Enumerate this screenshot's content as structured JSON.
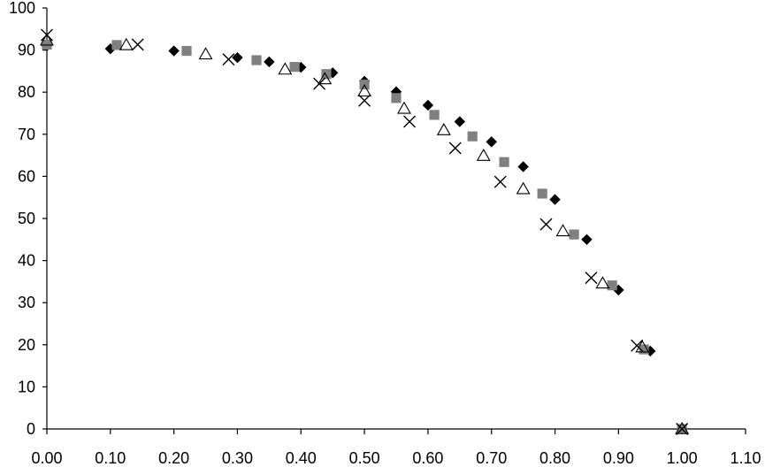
{
  "chart_data": {
    "type": "scatter",
    "title": "",
    "xlabel": "",
    "ylabel": "",
    "xlim": [
      0.0,
      1.1
    ],
    "ylim": [
      0,
      100
    ],
    "grid": false,
    "x_ticks": [
      "0.00",
      "0.10",
      "0.20",
      "0.30",
      "0.40",
      "0.50",
      "0.60",
      "0.70",
      "0.80",
      "0.90",
      "1.00",
      "1.10"
    ],
    "y_ticks": [
      "0",
      "10",
      "20",
      "30",
      "40",
      "50",
      "60",
      "70",
      "80",
      "90",
      "100"
    ],
    "series": [
      {
        "marker": "diamond",
        "color": "#000000",
        "x": [
          0.0,
          0.1,
          0.2,
          0.3,
          0.35,
          0.4,
          0.45,
          0.5,
          0.55,
          0.6,
          0.65,
          0.7,
          0.75,
          0.8,
          0.85,
          0.9,
          0.95,
          1.0
        ],
        "y": [
          91.0,
          90.3,
          89.8,
          88.2,
          87.2,
          85.9,
          84.6,
          82.6,
          80.1,
          76.9,
          73.0,
          68.2,
          62.3,
          54.5,
          45.0,
          33.0,
          18.5,
          0.0
        ]
      },
      {
        "marker": "square",
        "color": "#808080",
        "x": [
          0.0,
          0.11,
          0.22,
          0.33,
          0.39,
          0.44,
          0.5,
          0.55,
          0.61,
          0.67,
          0.72,
          0.78,
          0.83,
          0.89,
          0.94,
          1.0
        ],
        "y": [
          91.3,
          91.2,
          89.8,
          87.6,
          86.0,
          84.3,
          81.8,
          78.6,
          74.6,
          69.5,
          63.4,
          55.9,
          46.2,
          34.1,
          18.9,
          0.0
        ]
      },
      {
        "marker": "triangle-open",
        "color": "#000000",
        "x": [
          0.0,
          0.125,
          0.25,
          0.375,
          0.4375,
          0.5,
          0.5625,
          0.625,
          0.6875,
          0.75,
          0.8125,
          0.875,
          0.9375,
          1.0
        ],
        "y": [
          92.3,
          91.2,
          89.0,
          85.4,
          83.1,
          80.2,
          76.1,
          71.0,
          64.9,
          57.0,
          47.0,
          34.6,
          19.4,
          0.0
        ]
      },
      {
        "marker": "x",
        "color": "#000000",
        "x": [
          0.0,
          0.143,
          0.286,
          0.429,
          0.5,
          0.571,
          0.643,
          0.714,
          0.786,
          0.857,
          0.929,
          1.0
        ],
        "y": [
          93.6,
          91.3,
          87.8,
          82.0,
          78.0,
          73.0,
          66.7,
          58.7,
          48.6,
          35.9,
          19.8,
          0.0
        ]
      }
    ]
  }
}
